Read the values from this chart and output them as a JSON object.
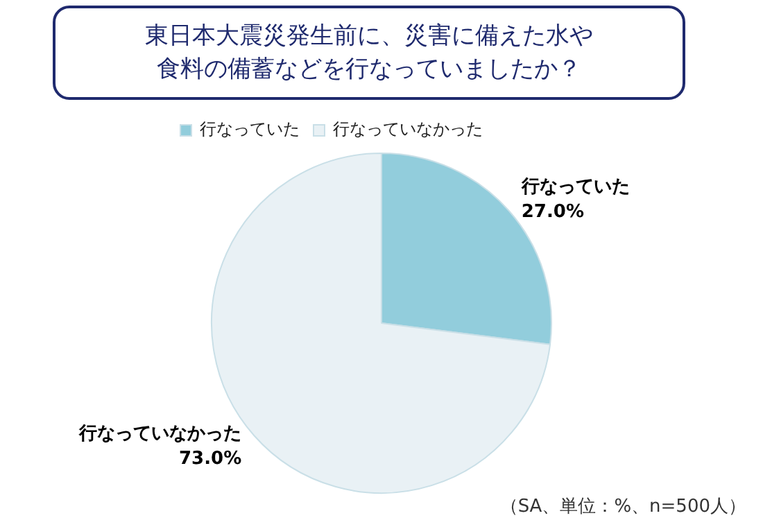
{
  "chart_data": {
    "type": "pie",
    "title": "東日本大震災発生前に、災害に備えた水や食料の備蓄などを行なっていましたか？",
    "categories": [
      "行なっていた",
      "行なっていなかった"
    ],
    "values": [
      27.0,
      73.0
    ],
    "value_labels": [
      "27.0%",
      "73.0%"
    ],
    "colors": [
      "#92cddc",
      "#e9f1f5"
    ],
    "legend": "top",
    "annotations": [
      "（SA、単位：%、n=500人）"
    ]
  }
}
